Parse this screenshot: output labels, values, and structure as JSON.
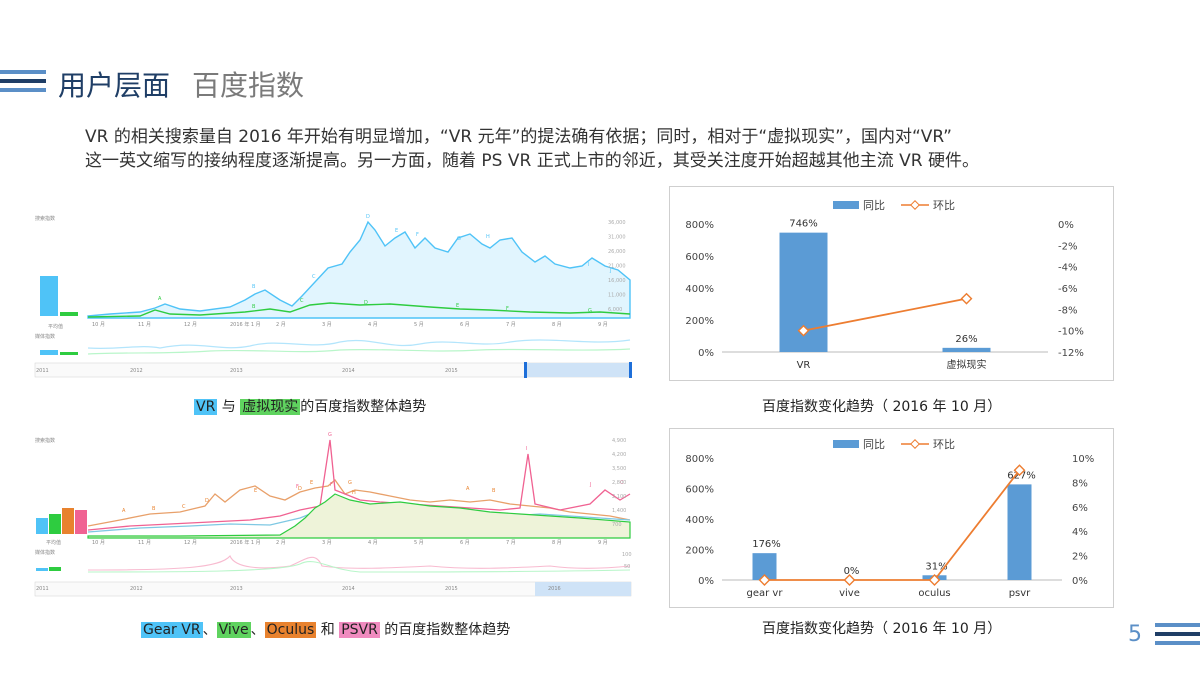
{
  "header": {
    "title": "用户层面",
    "subtitle": "百度指数"
  },
  "intro": {
    "line1": "VR 的相关搜索量自 2016 年开始有明显增加，“VR 元年”的提法确有依据；同时，相对于“虚拟现实”，国内对“VR”",
    "line2": "这一英文缩写的接纳程度逐渐提高。另一方面，随着 PS VR 正式上市的邻近，其受关注度开始超越其他主流 VR 硬件。"
  },
  "colors": {
    "navy": "#1f3e66",
    "accent_blue": "#5b8fc7",
    "bar_blue": "#5b9bd5",
    "line_orange": "#ed7d31",
    "hl_blue": "#4fc3f7",
    "hl_green": "#5fd35f",
    "hl_orange": "#e8822e",
    "hl_pink": "#f08bbf"
  },
  "trend1": {
    "legend_top": "搜索指数",
    "legend_mid": "媒体指数",
    "avg_label": "平均值",
    "months": [
      "10 月",
      "11 月",
      "12 月",
      "2016 年 1 月",
      "2 月",
      "3 月",
      "4 月",
      "5 月",
      "6 月",
      "7 月",
      "8 月",
      "9 月"
    ],
    "yticks": [
      "36,000",
      "31,000",
      "26,000",
      "21,000",
      "16,000",
      "11,000",
      "6,000"
    ],
    "years": [
      "2011",
      "2012",
      "2013",
      "2014",
      "2015"
    ],
    "markers": [
      "A",
      "B",
      "C",
      "D",
      "E",
      "F",
      "G",
      "H",
      "I",
      "J",
      "B",
      "C",
      "D",
      "E",
      "F",
      "G"
    ],
    "caption": {
      "p1": "VR",
      "p2": " 与 ",
      "p3": "虚拟现实",
      "p4": "的百度指数整体趋势"
    }
  },
  "trend2": {
    "legend_top": "搜索指数",
    "legend_mid": "媒体指数",
    "avg_label": "平均值",
    "months": [
      "10 月",
      "11 月",
      "12 月",
      "2016 年 1 月",
      "2 月",
      "3 月",
      "4 月",
      "5 月",
      "6 月",
      "7 月",
      "8 月",
      "9 月"
    ],
    "yticks": [
      "4,900",
      "4,200",
      "3,500",
      "2,800",
      "2,100",
      "1,400",
      "700"
    ],
    "years": [
      "2011",
      "2012",
      "2013",
      "2014",
      "2015",
      "2016"
    ],
    "mid_ticks": [
      "100",
      "50"
    ],
    "markers": [
      "A",
      "B",
      "C",
      "D",
      "E",
      "F",
      "G",
      "H",
      "I",
      "J",
      "D",
      "E",
      "F",
      "G",
      "A",
      "B",
      "C"
    ],
    "caption": {
      "p1": "Gear VR",
      "p2": "、",
      "p3": "Vive",
      "p4": "、",
      "p5": "Oculus",
      "p6": " 和 ",
      "p7": "PSVR",
      "p8": " 的百度指数整体趋势"
    }
  },
  "page_number": "5",
  "chart_data": [
    {
      "type": "bar",
      "title": "",
      "caption": "百度指数变化趋势（ 2016 年 10 月）",
      "categories": [
        "VR",
        "虚拟现实"
      ],
      "series": [
        {
          "name": "同比",
          "kind": "bar",
          "axis": "left",
          "values": [
            746,
            26
          ],
          "labels": [
            "746%",
            "26%"
          ]
        },
        {
          "name": "环比",
          "kind": "line",
          "axis": "right",
          "values": [
            -10,
            -7
          ]
        }
      ],
      "yleft": {
        "min": 0,
        "max": 800,
        "ticks": [
          "800%",
          "600%",
          "400%",
          "200%",
          "0%"
        ]
      },
      "yright": {
        "min": -12,
        "max": 0,
        "ticks": [
          "0%",
          "-2%",
          "-4%",
          "-6%",
          "-8%",
          "-10%",
          "-12%"
        ]
      },
      "legend": "top"
    },
    {
      "type": "bar",
      "title": "",
      "caption": "百度指数变化趋势（ 2016 年 10 月）",
      "categories": [
        "gear vr",
        "vive",
        "oculus",
        "psvr"
      ],
      "series": [
        {
          "name": "同比",
          "kind": "bar",
          "axis": "left",
          "values": [
            176,
            0,
            31,
            627
          ],
          "labels": [
            "176%",
            "0%",
            "31%",
            "627%"
          ]
        },
        {
          "name": "环比",
          "kind": "line",
          "axis": "right",
          "values": [
            0,
            0,
            0,
            9
          ]
        }
      ],
      "yleft": {
        "min": 0,
        "max": 800,
        "ticks": [
          "800%",
          "600%",
          "400%",
          "200%",
          "0%"
        ]
      },
      "yright": {
        "min": 0,
        "max": 10,
        "ticks": [
          "10%",
          "8%",
          "6%",
          "4%",
          "2%",
          "0%"
        ]
      },
      "legend": "top"
    }
  ]
}
